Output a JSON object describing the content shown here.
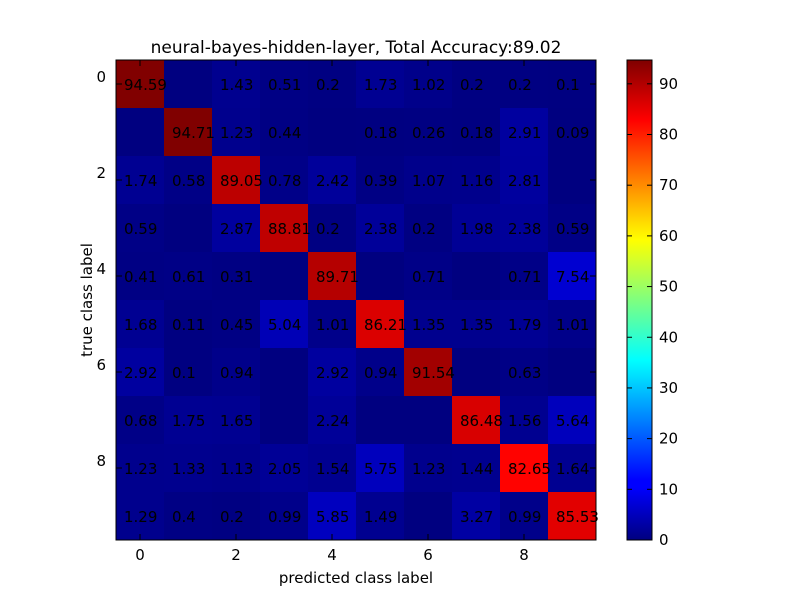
{
  "chart_data": {
    "type": "heatmap",
    "title": "neural-bayes-hidden-layer, Total Accuracy:89.02",
    "xlabel": "predicted class label",
    "ylabel": "true class label",
    "x_categories": [
      "0",
      "1",
      "2",
      "3",
      "4",
      "5",
      "6",
      "7",
      "8",
      "9"
    ],
    "y_categories": [
      "0",
      "1",
      "2",
      "3",
      "4",
      "5",
      "6",
      "7",
      "8",
      "9"
    ],
    "x_tick_labels": [
      "0",
      "2",
      "4",
      "6",
      "8"
    ],
    "y_tick_labels": [
      "0",
      "2",
      "4",
      "6",
      "8"
    ],
    "colorscale": "jet",
    "vmin": 0,
    "vmax": 94.7,
    "colorbar_ticks": [
      "0",
      "10",
      "20",
      "30",
      "40",
      "50",
      "60",
      "70",
      "80",
      "90"
    ],
    "values": [
      [
        94.59,
        0,
        1.43,
        0.51,
        0.2,
        1.73,
        1.02,
        0.2,
        0.2,
        0.1
      ],
      [
        0,
        94.71,
        1.23,
        0.44,
        0,
        0.18,
        0.26,
        0.18,
        2.91,
        0.09
      ],
      [
        1.74,
        0.58,
        89.05,
        0.78,
        2.42,
        0.39,
        1.07,
        1.16,
        2.81,
        0
      ],
      [
        0.59,
        0,
        2.87,
        88.81,
        0.2,
        2.38,
        0.2,
        1.98,
        2.38,
        0.59
      ],
      [
        0.41,
        0.61,
        0.31,
        0,
        89.71,
        0,
        0.71,
        0,
        0.71,
        7.54
      ],
      [
        1.68,
        0.11,
        0.45,
        5.04,
        1.01,
        86.21,
        1.35,
        1.35,
        1.79,
        1.01
      ],
      [
        2.92,
        0.1,
        0.94,
        0,
        2.92,
        0.94,
        91.54,
        0,
        0.63,
        0
      ],
      [
        0.68,
        1.75,
        1.65,
        0,
        2.24,
        0,
        0,
        86.48,
        1.56,
        5.64
      ],
      [
        1.23,
        1.33,
        1.13,
        2.05,
        1.54,
        5.75,
        1.23,
        1.44,
        82.65,
        1.64
      ],
      [
        1.29,
        0.4,
        0.2,
        0.99,
        5.85,
        1.49,
        0,
        3.27,
        0.99,
        85.53
      ]
    ],
    "cell_labels": [
      [
        "94.59",
        "",
        "1.43",
        "0.51",
        "0.2",
        "1.73",
        "1.02",
        "0.2",
        "0.2",
        "0.1"
      ],
      [
        "",
        "94.71",
        "1.23",
        "0.44",
        "",
        "0.18",
        "0.26",
        "0.18",
        "2.91",
        "0.09"
      ],
      [
        "1.74",
        "0.58",
        "89.05",
        "0.78",
        "2.42",
        "0.39",
        "1.07",
        "1.16",
        "2.81",
        ""
      ],
      [
        "0.59",
        "",
        "2.87",
        "88.81",
        "0.2",
        "2.38",
        "0.2",
        "1.98",
        "2.38",
        "0.59"
      ],
      [
        "0.41",
        "0.61",
        "0.31",
        "",
        "89.71",
        "",
        "0.71",
        "",
        "0.71",
        "7.54"
      ],
      [
        "1.68",
        "0.11",
        "0.45",
        "5.04",
        "1.01",
        "86.21",
        "1.35",
        "1.35",
        "1.79",
        "1.01"
      ],
      [
        "2.92",
        "0.1",
        "0.94",
        "",
        "2.92",
        "0.94",
        "91.54",
        "",
        "0.63",
        ""
      ],
      [
        "0.68",
        "1.75",
        "1.65",
        "",
        "2.24",
        "",
        "",
        "86.48",
        "1.56",
        "5.64"
      ],
      [
        "1.23",
        "1.33",
        "1.13",
        "2.05",
        "1.54",
        "5.75",
        "1.23",
        "1.44",
        "82.65",
        "1.64"
      ],
      [
        "1.29",
        "0.4",
        "0.2",
        "0.99",
        "5.85",
        "1.49",
        "",
        "3.27",
        "0.99",
        "85.53"
      ]
    ]
  }
}
